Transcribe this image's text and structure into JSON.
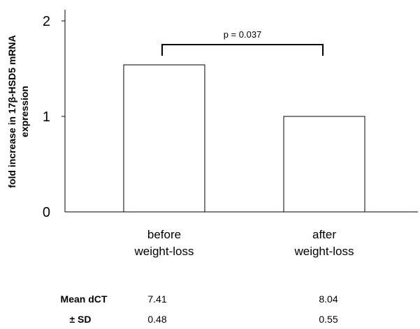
{
  "chart_data": {
    "type": "bar",
    "categories": [
      [
        "before",
        "weight-loss"
      ],
      [
        "after",
        "weight-loss"
      ]
    ],
    "values": [
      1.54,
      1.0
    ],
    "ylabel": [
      "fold increase in 17β-HSD5 mRNA",
      "expression"
    ],
    "ylim": [
      0,
      2
    ],
    "yticks": [
      0,
      1,
      2
    ],
    "grid": false,
    "bar_fill": "#ffffff",
    "bar_stroke": "#000000",
    "significance": {
      "label": "p = 0.037",
      "between": [
        0,
        1
      ]
    },
    "stats_table": {
      "rows": [
        {
          "label": "Mean dCT",
          "values": [
            "7.41",
            "8.04"
          ]
        },
        {
          "label": "± SD",
          "values": [
            "0.48",
            "0.55"
          ]
        }
      ]
    }
  }
}
